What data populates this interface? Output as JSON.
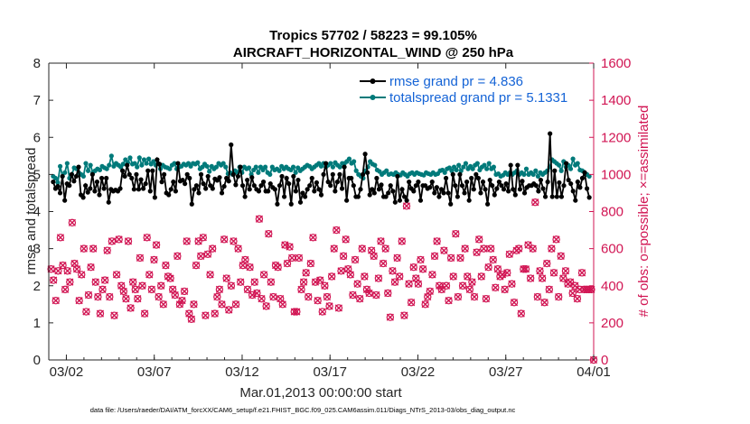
{
  "chart_data": {
    "type": "line",
    "title_line1": "Tropics 57702 / 58223 = 99.105%",
    "title_line2": "AIRCRAFT_HORIZONTAL_WIND @ 250 hPa",
    "xlabel": "Mar.01,2013 00:00:00 start",
    "ylabel_left": "rmse and totalspread",
    "ylabel_right": "# of obs: o=possible; ×=assimilated",
    "footnote": "data file: /Users/raeder/DAI/ATM_forcXX/CAM6_setup/f.e21.FHIST_BGC.f09_025.CAM6assim.011/Diags_NTrS_2013-03/obs_diag_output.nc",
    "x_days_range": [
      0,
      31
    ],
    "ylim_left": [
      0,
      8
    ],
    "ylim_right": [
      0,
      1600
    ],
    "y_ticks_left": [
      "0",
      "1",
      "2",
      "3",
      "4",
      "5",
      "6",
      "7",
      "8"
    ],
    "y_ticks_right": [
      "0",
      "200",
      "400",
      "600",
      "800",
      "1000",
      "1200",
      "1400",
      "1600"
    ],
    "x_ticks": [
      {
        "day": 1,
        "label": "03/02"
      },
      {
        "day": 6,
        "label": "03/07"
      },
      {
        "day": 11,
        "label": "03/12"
      },
      {
        "day": 16,
        "label": "03/17"
      },
      {
        "day": 21,
        "label": "03/22"
      },
      {
        "day": 26,
        "label": "03/27"
      },
      {
        "day": 31,
        "label": "04/01"
      }
    ],
    "legend": [
      {
        "label": "rmse grand pr = 4.836",
        "color": "#000000"
      },
      {
        "label": "totalspread grand pr = 5.1331",
        "color": "#007a7a"
      }
    ],
    "series_step_days": 0.25,
    "series": [
      {
        "name": "rmse",
        "color": "#000000",
        "axis": "left",
        "values": [
          4.8,
          4.62,
          4.68,
          4.5,
          4.95,
          4.3,
          4.75,
          4.7,
          5.0,
          4.82,
          4.95,
          5.2,
          4.45,
          4.38,
          4.7,
          4.52,
          4.62,
          5.0,
          4.55,
          4.8,
          4.45,
          4.9,
          4.62,
          4.9,
          4.25,
          4.6,
          4.55,
          4.58,
          4.55,
          4.62,
          5.1,
          4.95,
          5.25,
          5.0,
          4.9,
          4.6,
          5.0,
          4.6,
          4.86,
          4.62,
          4.75,
          5.1,
          4.55,
          5.1,
          4.38,
          5.4,
          5.28,
          4.8,
          5.0,
          4.5,
          4.45,
          4.6,
          4.8,
          4.55,
          5.3,
          4.82,
          4.85,
          4.75,
          5.0,
          4.9,
          4.2,
          4.6,
          4.7,
          4.5,
          5.0,
          4.75,
          4.62,
          4.95,
          4.7,
          4.62,
          4.88,
          4.84,
          4.92,
          4.5,
          4.68,
          4.9,
          4.82,
          5.8,
          5.0,
          4.72,
          4.95,
          5.2,
          4.7,
          4.4,
          4.85,
          4.6,
          4.92,
          4.7,
          4.6,
          4.55,
          4.7,
          4.8,
          4.55,
          4.55,
          4.75,
          4.65,
          4.6,
          4.2,
          4.7,
          4.95,
          4.4,
          4.9,
          4.75,
          4.2,
          4.95,
          4.55,
          4.85,
          4.25,
          4.5,
          4.4,
          4.6,
          4.7,
          4.9,
          4.55,
          4.78,
          4.6,
          4.45,
          5.0,
          5.3,
          4.8,
          4.7,
          5.0,
          4.55,
          4.8,
          5.0,
          4.62,
          5.2,
          4.3,
          4.9,
          4.9,
          4.7,
          4.4,
          4.4,
          4.6,
          5.0,
          5.55,
          5.05,
          4.45,
          4.6,
          4.5,
          4.9,
          4.6,
          4.72,
          4.4,
          4.4,
          4.5,
          4.7,
          4.55,
          4.25,
          4.95,
          4.3,
          4.6,
          4.4,
          4.3,
          4.8,
          4.62,
          4.55,
          4.7,
          4.8,
          4.3,
          4.7,
          4.7,
          4.62,
          4.65,
          4.8,
          4.5,
          4.65,
          4.4,
          4.6,
          4.5,
          4.9,
          4.5,
          4.2,
          5.0,
          4.7,
          4.4,
          5.0,
          4.7,
          4.5,
          4.8,
          4.3,
          4.9,
          4.6,
          5.0,
          4.9,
          4.5,
          4.8,
          4.6,
          4.2,
          4.85,
          4.7,
          4.45,
          4.62,
          4.8,
          4.7,
          4.6,
          4.75,
          4.55,
          5.25,
          4.6,
          4.45,
          5.25,
          4.6,
          4.82,
          4.5,
          4.65,
          4.7,
          4.7,
          4.75,
          4.7,
          4.55,
          4.85,
          4.62,
          4.4,
          4.8,
          6.1,
          4.4,
          5.1,
          4.4,
          4.78,
          4.4,
          4.7,
          5.3,
          4.85,
          4.75,
          4.55,
          4.3,
          4.8,
          4.65,
          4.9,
          5.05,
          4.62,
          4.38
        ]
      },
      {
        "name": "totalspread",
        "color": "#007a7a",
        "axis": "left",
        "values": [
          4.95,
          4.9,
          4.78,
          5.22,
          4.95,
          5.05,
          5.3,
          4.9,
          5.0,
          5.18,
          5.15,
          5.05,
          5.0,
          4.95,
          5.3,
          5.1,
          5.25,
          5.05,
          5.1,
          5.15,
          5.12,
          5.22,
          5.18,
          5.15,
          5.25,
          5.5,
          5.22,
          5.3,
          5.25,
          5.2,
          5.28,
          5.4,
          5.32,
          5.45,
          5.28,
          5.3,
          5.2,
          5.45,
          5.25,
          5.4,
          5.3,
          5.42,
          5.28,
          5.35,
          5.25,
          5.3,
          5.15,
          5.25,
          5.2,
          5.18,
          5.15,
          5.25,
          5.3,
          5.15,
          5.2,
          5.22,
          5.28,
          5.25,
          5.3,
          5.22,
          5.3,
          5.28,
          5.32,
          5.15,
          5.2,
          5.28,
          5.22,
          5.08,
          5.22,
          5.15,
          5.2,
          5.3,
          5.25,
          5.3,
          5.2,
          5.02,
          5.05,
          5.0,
          5.1,
          5.05,
          5.2,
          5.05,
          5.2,
          5.15,
          5.18,
          5.0,
          5.12,
          5.2,
          5.05,
          5.2,
          5.12,
          5.2,
          5.05,
          5.0,
          5.2,
          5.12,
          5.15,
          5.1,
          5.22,
          5.15,
          5.2,
          5.15,
          5.12,
          5.2,
          5.05,
          5.18,
          5.1,
          5.15,
          5.2,
          5.25,
          5.22,
          5.15,
          5.2,
          5.25,
          5.3,
          5.22,
          5.3,
          5.2,
          5.25,
          5.3,
          5.2,
          5.32,
          5.25,
          5.2,
          5.3,
          5.3,
          5.35,
          5.42,
          5.3,
          5.35,
          5.1,
          5.0,
          4.95,
          4.9,
          5.1,
          5.2,
          5.35,
          5.28,
          5.25,
          5.12,
          5.08,
          5.0,
          5.05,
          5.1,
          5.0,
          5.02,
          5.0,
          5.05,
          5.0,
          4.98,
          5.05,
          5.0,
          4.95,
          5.02,
          5.05,
          5.0,
          5.05,
          5.02,
          5.0,
          4.98,
          5.05,
          5.02,
          5.0,
          5.05,
          5.0,
          5.02,
          5.1,
          5.12,
          5.05,
          5.15,
          5.18,
          5.1,
          5.2,
          5.12,
          5.25,
          5.1,
          5.2,
          5.3,
          5.15,
          5.22,
          5.15,
          5.25,
          5.3,
          5.12,
          5.2,
          5.25,
          5.15,
          5.3,
          5.15,
          5.2,
          5.0,
          5.02,
          4.95,
          4.98,
          5.05,
          5.0,
          5.05,
          5.0,
          5.05,
          5.1,
          5.0,
          5.05,
          5.0,
          5.15,
          5.0,
          5.05,
          5.0,
          5.1,
          4.95,
          5.05,
          5.0,
          5.05,
          5.1,
          5.2,
          5.4,
          5.35,
          5.3,
          5.25,
          5.1,
          5.35,
          5.2,
          5.25,
          5.15,
          5.42,
          5.25,
          5.3,
          5.12,
          5.1,
          5.05,
          5.0,
          4.95
        ]
      },
      {
        "name": "possible",
        "color": "#d11553",
        "axis": "right",
        "values": [
          490,
          430,
          320,
          480,
          660,
          510,
          380,
          480,
          420,
          740,
          520,
          490,
          320,
          460,
          600,
          260,
          350,
          500,
          600,
          420,
          340,
          250,
          380,
          430,
          590,
          340,
          640,
          240,
          460,
          650,
          400,
          370,
          330,
          640,
          280,
          420,
          380,
          330,
          550,
          400,
          250,
          660,
          460,
          380,
          540,
          620,
          340,
          400,
          300,
          510,
          450,
          440,
          380,
          350,
          560,
          300,
          320,
          370,
          640,
          250,
          220,
          300,
          510,
          640,
          560,
          660,
          240,
          570,
          460,
          600,
          250,
          340,
          380,
          300,
          650,
          440,
          270,
          400,
          640,
          300,
          600,
          420,
          510,
          540,
          380,
          500,
          350,
          420,
          360,
          760,
          330,
          460,
          290,
          680,
          420,
          340,
          510,
          500,
          330,
          300,
          620,
          520,
          610,
          550,
          260,
          260,
          550,
          380,
          420,
          470,
          340,
          520,
          660,
          420,
          320,
          430,
          260,
          400,
          340,
          290,
          450,
          600,
          700,
          280,
          480,
          560,
          650,
          490,
          460,
          350,
          540,
          410,
          330,
          600,
          450,
          380,
          360,
          590,
          560,
          350,
          440,
          640,
          520,
          600,
          360,
          230,
          480,
          420,
          550,
          450,
          640,
          240,
          830,
          410,
          310,
          500,
          440,
          410,
          540,
          490,
          300,
          340,
          370,
          460,
          560,
          640,
          400,
          380,
          590,
          400,
          320,
          550,
          450,
          680,
          340,
          550,
          400,
          600,
          450,
          380,
          420,
          340,
          580,
          650,
          450,
          600,
          330,
          500,
          600,
          540,
          390,
          490,
          450,
          460,
          380,
          470,
          570,
          410,
          310,
          590,
          600,
          250,
          490,
          490,
          620,
          440,
          600,
          850,
          340,
          480,
          440,
          310,
          520,
          380,
          600,
          470,
          650,
          340,
          560,
          440,
          480,
          410,
          420,
          360,
          400,
          330,
          380,
          470,
          380,
          380,
          380,
          380,
          0
        ]
      }
    ]
  }
}
